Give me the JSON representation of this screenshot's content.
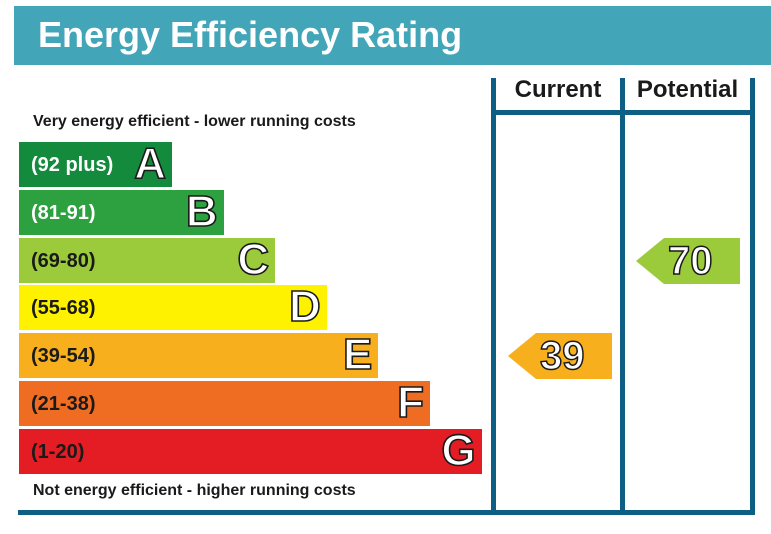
{
  "header": {
    "title": "Energy Efficiency Rating"
  },
  "captions": {
    "top": "Very energy efficient - lower running costs",
    "bottom": "Not energy efficient - higher running costs"
  },
  "columns": {
    "current": "Current",
    "potential": "Potential"
  },
  "chart_data": {
    "type": "bar",
    "bands": [
      {
        "letter": "A",
        "range": "(92 plus)",
        "color": "#138a3c",
        "text_color": "#ffffff"
      },
      {
        "letter": "B",
        "range": "(81-91)",
        "color": "#2da040",
        "text_color": "#ffffff"
      },
      {
        "letter": "C",
        "range": "(69-80)",
        "color": "#9bcb3b",
        "text_color": "#1a1a1a"
      },
      {
        "letter": "D",
        "range": "(55-68)",
        "color": "#fff200",
        "text_color": "#1a1a1a"
      },
      {
        "letter": "E",
        "range": "(39-54)",
        "color": "#f7af1e",
        "text_color": "#1a1a1a"
      },
      {
        "letter": "F",
        "range": "(21-38)",
        "color": "#ef6c23",
        "text_color": "#1a1a1a"
      },
      {
        "letter": "G",
        "range": "(1-20)",
        "color": "#e31d23",
        "text_color": "#1a1a1a"
      }
    ],
    "current": {
      "value": "39",
      "band": "E",
      "color": "#f7af1e"
    },
    "potential": {
      "value": "70",
      "band": "C",
      "color": "#9bcb3b"
    }
  },
  "colors": {
    "header": "#42a5b8",
    "frame": "#0d5f84"
  }
}
